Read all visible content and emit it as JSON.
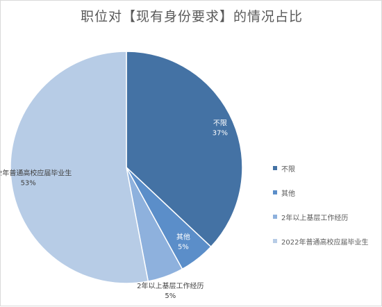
{
  "chart_data": {
    "type": "pie",
    "title": "职位对【现有身份要求】的情况占比",
    "categories": [
      "不限",
      "其他",
      "2年以上基层工作经历",
      "2022年普通高校应届毕业生"
    ],
    "values": [
      37,
      5,
      5,
      53
    ],
    "labels": [
      "37%",
      "5%",
      "5%",
      "53%"
    ],
    "colors": [
      "#4472a4",
      "#5b8ec9",
      "#8eb1dd",
      "#b7cce6"
    ],
    "legend": "right"
  }
}
